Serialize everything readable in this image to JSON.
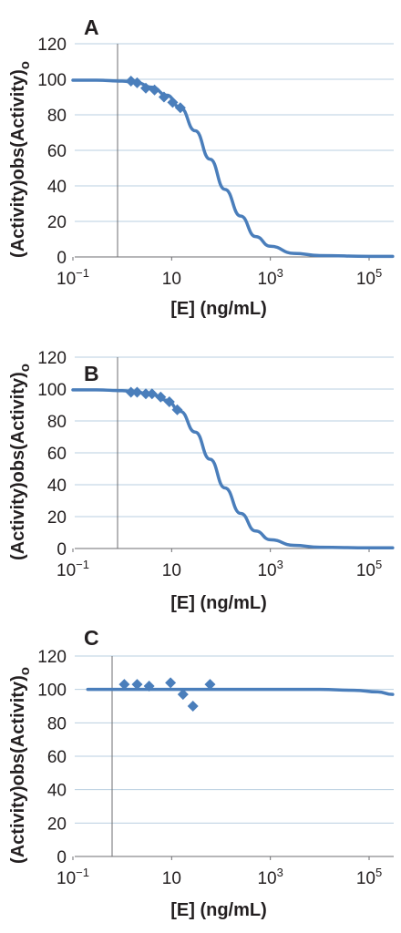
{
  "chart_data": [
    {
      "type": "line",
      "panel_label": "A",
      "xlabel": "[E] (ng/mL)",
      "ylabel": "(Activity)obs(Activity)o",
      "xscale": "log",
      "xlim": [
        0.1,
        400000
      ],
      "ylim": [
        0,
        120
      ],
      "xticks": [
        0.1,
        10,
        1000,
        100000
      ],
      "xtick_labels": [
        "10−1",
        "10",
        "10³",
        "10⁵"
      ],
      "yticks": [
        0,
        20,
        40,
        60,
        80,
        100,
        120
      ],
      "ytick_labels": [
        "0",
        "20",
        "40",
        "60",
        "80",
        "100",
        "120"
      ],
      "grid": "horizontal",
      "colors": {
        "series": "#4a7ebb",
        "grid": "#b9cfe0"
      },
      "series": [
        {
          "kind": "line",
          "x": [
            0.1,
            0.3,
            1,
            2,
            4,
            8,
            15,
            30,
            60,
            120,
            250,
            500,
            1000,
            3000,
            10000,
            100000,
            300000
          ],
          "y": [
            99.5,
            99.5,
            99,
            98,
            95.5,
            91,
            84,
            71,
            55,
            38,
            23,
            11.5,
            6,
            2,
            0.8,
            0.3,
            0.3
          ]
        },
        {
          "kind": "scatter",
          "marker": "diamond",
          "x": [
            1.5,
            2,
            3,
            4.5,
            7,
            10.5,
            15
          ],
          "y": [
            99,
            98,
            95,
            94,
            90,
            87,
            84
          ]
        }
      ]
    },
    {
      "type": "line",
      "panel_label": "B",
      "xlabel": "[E] (ng/mL)",
      "ylabel": "(Activity)obs(Activity)o",
      "xscale": "log",
      "xlim": [
        0.1,
        400000
      ],
      "ylim": [
        0,
        120
      ],
      "xticks": [
        0.1,
        10,
        1000,
        100000
      ],
      "xtick_labels": [
        "10−1",
        "10",
        "10³",
        "10⁵"
      ],
      "yticks": [
        0,
        20,
        40,
        60,
        80,
        100,
        120
      ],
      "ytick_labels": [
        "0",
        "20",
        "40",
        "60",
        "80",
        "100",
        "120"
      ],
      "grid": "horizontal",
      "colors": {
        "series": "#4a7ebb",
        "grid": "#b9cfe0"
      },
      "series": [
        {
          "kind": "line",
          "x": [
            0.1,
            0.3,
            1,
            2,
            4,
            8,
            15,
            30,
            60,
            120,
            250,
            500,
            1000,
            3000,
            10000,
            100000,
            300000
          ],
          "y": [
            99.5,
            99.5,
            99,
            98,
            96.5,
            93,
            86,
            73,
            56,
            38,
            22,
            11,
            5.5,
            2,
            0.8,
            0.4,
            0.4
          ]
        },
        {
          "kind": "scatter",
          "marker": "diamond",
          "x": [
            1.5,
            2,
            3,
            4,
            6,
            9,
            13
          ],
          "y": [
            98,
            98,
            97,
            97,
            95,
            92,
            87
          ]
        }
      ]
    },
    {
      "type": "line",
      "panel_label": "C",
      "xlabel": "[E] (ng/mL)",
      "ylabel": "(Activity)obs(Activity)o",
      "xscale": "log",
      "xlim": [
        0.1,
        400000
      ],
      "ylim": [
        0,
        120
      ],
      "xticks": [
        0.1,
        10,
        1000,
        100000
      ],
      "xtick_labels": [
        "10−1",
        "10",
        "10³",
        "10⁵"
      ],
      "yticks": [
        0,
        20,
        40,
        60,
        80,
        100,
        120
      ],
      "ytick_labels": [
        "0",
        "20",
        "40",
        "60",
        "80",
        "100",
        "120"
      ],
      "grid": "horizontal",
      "colors": {
        "series": "#4a7ebb",
        "grid": "#b9cfe0"
      },
      "series": [
        {
          "kind": "line",
          "x": [
            0.2,
            1,
            10,
            100,
            1000,
            10000,
            50000,
            150000,
            300000
          ],
          "y": [
            100,
            100,
            100,
            100,
            100,
            100,
            99.5,
            98.5,
            97
          ]
        },
        {
          "kind": "scatter",
          "marker": "diamond",
          "x": [
            1.1,
            2,
            3.5,
            9.5,
            17,
            27,
            60
          ],
          "y": [
            103,
            103,
            102,
            104,
            97,
            90,
            103
          ]
        }
      ]
    }
  ]
}
